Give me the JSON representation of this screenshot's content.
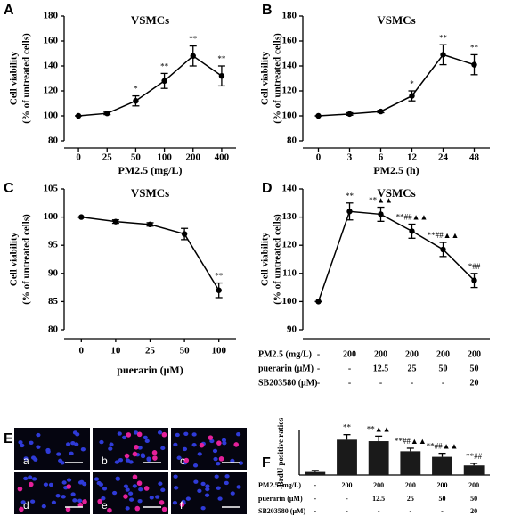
{
  "chart_data": [
    {
      "type": "line",
      "panel_label": "A",
      "title": "VSMCs",
      "xlabel": "PM2.5 (mg/L)",
      "ylabel": [
        "Cell viability",
        "(% of untreated cells)"
      ],
      "categories": [
        "0",
        "25",
        "50",
        "100",
        "200",
        "400"
      ],
      "values": [
        100,
        102,
        112,
        128,
        148,
        132
      ],
      "errors": [
        0,
        1,
        4,
        6,
        8,
        8
      ],
      "annotations": [
        null,
        null,
        "*",
        "**",
        "**",
        "**"
      ],
      "color": "#000000",
      "ylim": [
        80,
        180
      ],
      "yticks": [
        80,
        100,
        120,
        140,
        160,
        180
      ]
    },
    {
      "type": "line",
      "panel_label": "B",
      "title": "VSMCs",
      "xlabel": "PM2.5 (h)",
      "ylabel": [
        "Cell viability",
        "(% of untreated cells)"
      ],
      "categories": [
        "0",
        "3",
        "6",
        "12",
        "24",
        "48"
      ],
      "values": [
        100,
        101.5,
        103.5,
        116,
        149,
        141
      ],
      "errors": [
        0,
        1,
        1,
        4,
        8,
        8
      ],
      "annotations": [
        null,
        null,
        null,
        "*",
        "**",
        "**"
      ],
      "color": "#000000",
      "ylim": [
        80,
        180
      ],
      "yticks": [
        80,
        100,
        120,
        140,
        160,
        180
      ]
    },
    {
      "type": "line",
      "panel_label": "C",
      "title": "VSMCs",
      "xlabel": "puerarin (μM)",
      "ylabel": [
        "Cell viability",
        "(% of untreated cells)"
      ],
      "categories": [
        "0",
        "10",
        "25",
        "50",
        "100"
      ],
      "values": [
        100,
        99.2,
        98.7,
        97,
        87
      ],
      "errors": [
        0,
        0.3,
        0.3,
        1,
        1.3
      ],
      "annotations": [
        null,
        null,
        null,
        null,
        "**"
      ],
      "color": "#000000",
      "ylim": [
        80,
        105
      ],
      "yticks": [
        80,
        85,
        90,
        95,
        100,
        105
      ]
    },
    {
      "type": "line",
      "panel_label": "D",
      "title": "VSMCs",
      "ylabel": [
        "Cell viability",
        "(% of untreated cells)"
      ],
      "values": [
        100,
        132,
        131,
        125,
        118.5,
        107.5
      ],
      "errors": [
        0,
        3,
        2.5,
        2.5,
        2.5,
        2.5
      ],
      "annotations": [
        null,
        "**",
        "**▲▲",
        "**##▲▲",
        "**##▲▲",
        "*##"
      ],
      "color": "#000000",
      "ylim": [
        90,
        140
      ],
      "yticks": [
        90,
        100,
        110,
        120,
        130,
        140
      ],
      "condition_table": [
        {
          "label": "PM2.5 (mg/L)",
          "cells": [
            "-",
            "200",
            "200",
            "200",
            "200",
            "200"
          ]
        },
        {
          "label": "puerarin (μM)",
          "cells": [
            "-",
            "-",
            "12.5",
            "25",
            "50",
            "50"
          ]
        },
        {
          "label": "SB203580 (μM)",
          "cells": [
            "-",
            "-",
            "-",
            "-",
            "-",
            "20"
          ]
        }
      ]
    },
    {
      "type": "bar",
      "panel_label": "F",
      "ylabel": [
        "BrdU positive ratios"
      ],
      "values": [
        3,
        35,
        33.5,
        23.5,
        18,
        9.5
      ],
      "errors": [
        1.5,
        5,
        5,
        3,
        3.5,
        2
      ],
      "annotations": [
        null,
        "**",
        "**▲▲",
        "**##▲▲",
        "**##▲▲",
        "**##"
      ],
      "color": "#1a1a1a",
      "ylim": [
        0,
        45
      ],
      "condition_table": [
        {
          "label": "PM2.5 (mg/L)",
          "cells": [
            "-",
            "200",
            "200",
            "200",
            "200",
            "200"
          ]
        },
        {
          "label": "puerarin (μM)",
          "cells": [
            "-",
            "-",
            "12.5",
            "25",
            "50",
            "50"
          ]
        },
        {
          "label": "SB203580 (μM)",
          "cells": [
            "-",
            "-",
            "-",
            "-",
            "-",
            "20"
          ]
        }
      ]
    }
  ],
  "image_panel": {
    "label": "E",
    "tiles": [
      "a",
      "b",
      "c",
      "d",
      "e",
      "f"
    ]
  }
}
